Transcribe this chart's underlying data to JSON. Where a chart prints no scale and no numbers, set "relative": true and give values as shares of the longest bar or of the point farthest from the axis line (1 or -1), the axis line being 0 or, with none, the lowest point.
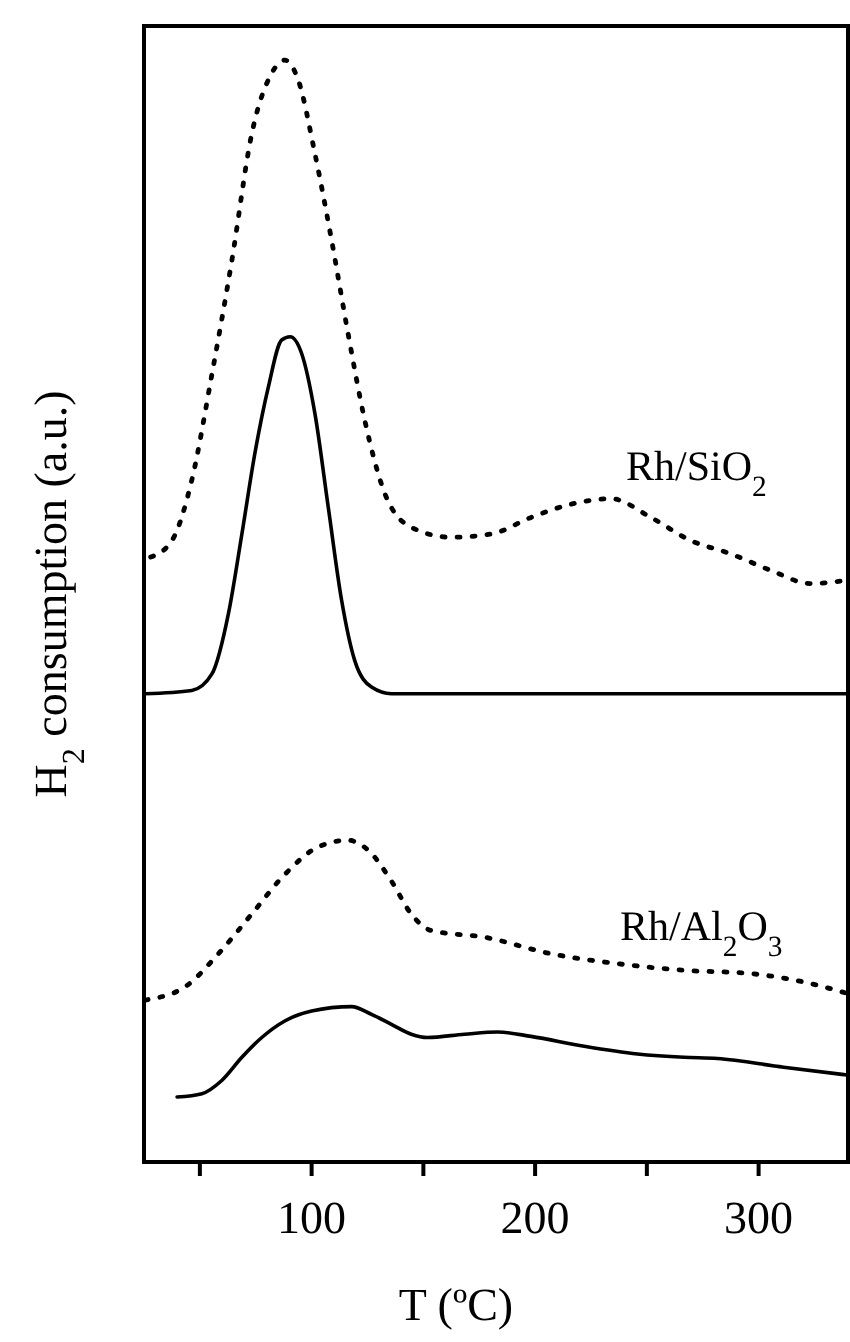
{
  "chart_data": {
    "type": "line",
    "relative": true,
    "xlabel": "T (ºC)",
    "ylabel": "H$_{2}$ consumption (a.u.)",
    "xlim": [
      25,
      340
    ],
    "xticks": [
      {
        "value": 50,
        "label": null
      },
      100,
      {
        "value": 150,
        "label": null
      },
      200,
      {
        "value": 250,
        "label": null
      },
      300
    ],
    "tick_labels": "x",
    "annotations": [
      "Rh/SiO$_{2}$",
      "Rh/Al$_{2}$O$_{3}$"
    ],
    "series": [
      {
        "color": "#000000",
        "line_style": "dotted",
        "x": [
          28,
          37.5,
          46.4,
          55.4,
          64.3,
          73.2,
          82.1,
          88,
          94,
          101.5,
          108.9,
          116.3,
          123.8,
          132.7,
          144.6,
          162.5,
          180.4,
          198.2,
          216.1,
          233.9,
          251.8,
          269.6,
          287.5,
          305.4,
          323.2,
          339.6
        ],
        "values": [
          0.549,
          0.564,
          0.619,
          0.715,
          0.818,
          0.933,
          0.988,
          1.0,
          0.982,
          0.915,
          0.837,
          0.752,
          0.673,
          0.607,
          0.576,
          0.567,
          0.57,
          0.585,
          0.597,
          0.602,
          0.585,
          0.564,
          0.552,
          0.537,
          0.525,
          0.528
        ]
      },
      {
        "color": "#000000",
        "line_style": "solid",
        "x": [
          25.5,
          46.4,
          55.4,
          62.8,
          68.8,
          74.6,
          80.6,
          86.6,
          90.4,
          95.5,
          101.5,
          107.4,
          113.4,
          119.3,
          126.8,
          135.7,
          339.6
        ],
        "values": [
          0.425,
          0.428,
          0.443,
          0.498,
          0.57,
          0.643,
          0.703,
          0.746,
          0.749,
          0.734,
          0.679,
          0.595,
          0.51,
          0.455,
          0.431,
          0.425,
          0.425
        ]
      },
      {
        "color": "#000000",
        "line_style": "dotted",
        "x": [
          25.5,
          43.4,
          58.3,
          73.2,
          88,
          103,
          116.3,
          125.3,
          135.7,
          144.6,
          153.6,
          177.4,
          207.1,
          236.9,
          266.6,
          296.4,
          323.2,
          339.6
        ],
        "values": [
          0.147,
          0.159,
          0.189,
          0.225,
          0.261,
          0.286,
          0.292,
          0.283,
          0.255,
          0.225,
          0.21,
          0.204,
          0.189,
          0.18,
          0.174,
          0.171,
          0.162,
          0.153
        ]
      },
      {
        "color": "#000000",
        "line_style": "solid",
        "x": [
          39.8,
          50.9,
          59.8,
          68.8,
          77.7,
          88,
          100,
          117.9,
          126.8,
          135.7,
          144.6,
          151.8,
          168.4,
          183.3,
          198.2,
          222,
          245.8,
          266.6,
          281.5,
          311.2,
          339.6
        ],
        "values": [
          0.059,
          0.062,
          0.074,
          0.095,
          0.113,
          0.128,
          0.137,
          0.141,
          0.134,
          0.125,
          0.116,
          0.113,
          0.116,
          0.118,
          0.114,
          0.105,
          0.098,
          0.095,
          0.094,
          0.086,
          0.079
        ]
      }
    ]
  }
}
